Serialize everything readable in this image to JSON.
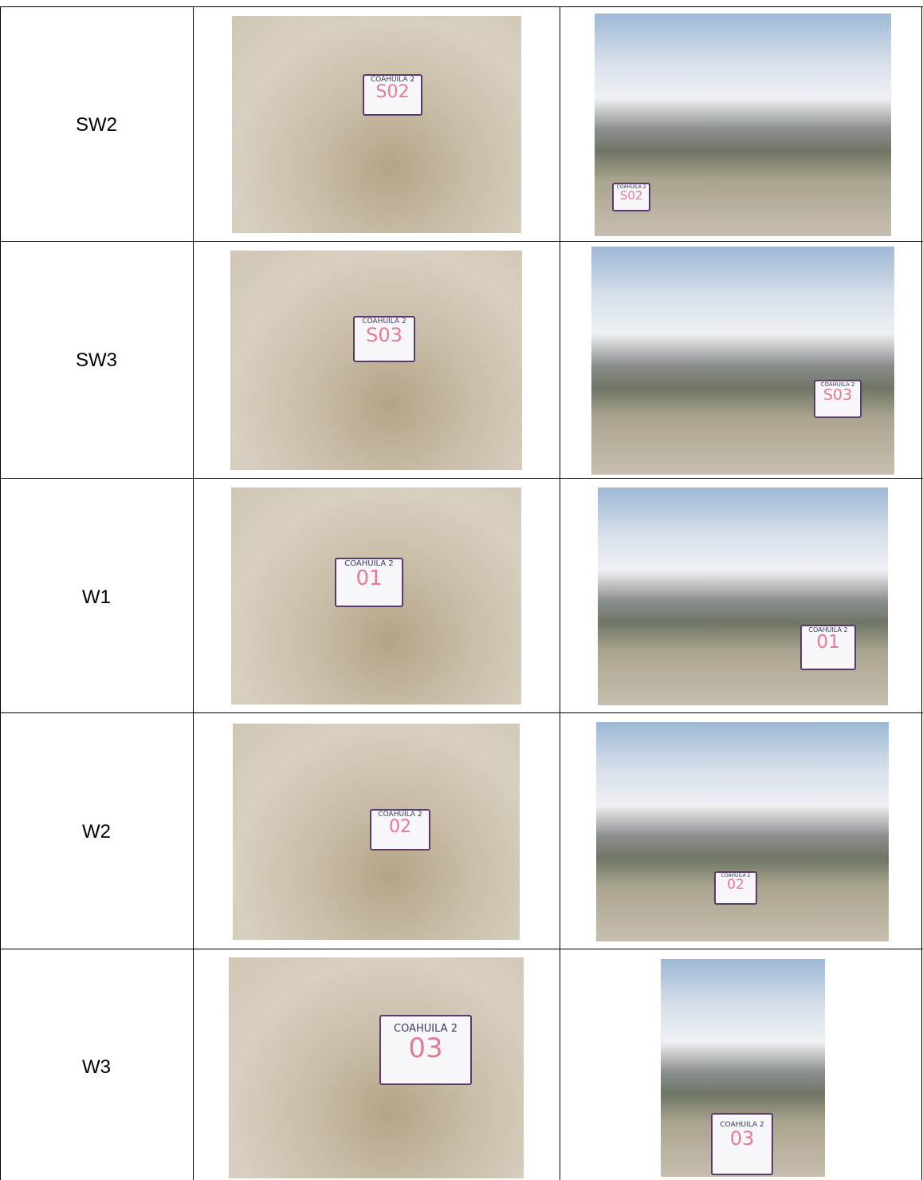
{
  "table": {
    "rows": [
      {
        "label": "SW2",
        "sign_title": "COAHUILA 2",
        "sign_code": "S02"
      },
      {
        "label": "SW3",
        "sign_title": "COAHUILA 2",
        "sign_code": "S03"
      },
      {
        "label": "W1",
        "sign_title": "COAHUILA 2",
        "sign_code": "01"
      },
      {
        "label": "W2",
        "sign_title": "COAHUILA 2",
        "sign_code": "02"
      },
      {
        "label": "W3",
        "sign_title": "COAHUILA 2",
        "sign_code": "03"
      }
    ]
  }
}
